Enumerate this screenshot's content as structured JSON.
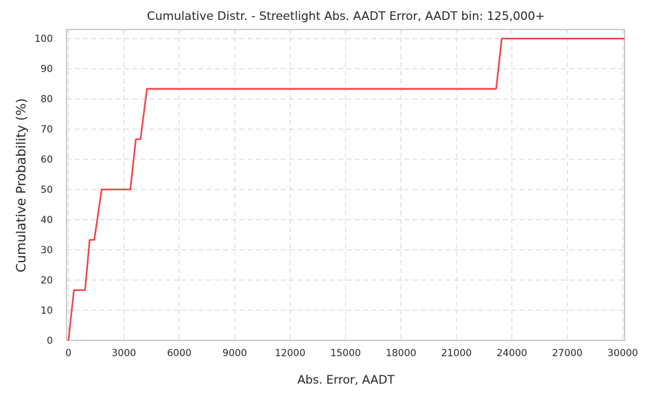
{
  "chart_data": {
    "type": "line",
    "title": "Cumulative Distr. - Streetlight Abs. AADT Error, AADT bin: 125,000+",
    "xlabel": "Abs. Error, AADT",
    "ylabel": "Cumulative Probability (%)",
    "xlim": [
      -100,
      30100
    ],
    "ylim": [
      0,
      103
    ],
    "xticks": [
      0,
      3000,
      6000,
      9000,
      12000,
      15000,
      18000,
      21000,
      24000,
      27000,
      30000
    ],
    "xtick_labels": [
      "0",
      "3000",
      "6000",
      "9000",
      "12000",
      "15000",
      "18000",
      "21000",
      "24000",
      "27000",
      "30000"
    ],
    "yticks": [
      0,
      10,
      20,
      30,
      40,
      50,
      60,
      70,
      80,
      90,
      100
    ],
    "ytick_labels": [
      "0",
      "10",
      "20",
      "30",
      "40",
      "50",
      "60",
      "70",
      "80",
      "90",
      "100"
    ],
    "grid": true,
    "color": "#f0444a",
    "series": [
      {
        "x": [
          0,
          300,
          900,
          1150,
          1400,
          1800,
          3350,
          3650,
          3900,
          4250,
          23150,
          23450,
          30100
        ],
        "y": [
          0,
          16.67,
          16.67,
          33.33,
          33.33,
          50,
          50,
          66.67,
          66.67,
          83.33,
          83.33,
          100,
          100
        ]
      }
    ]
  }
}
